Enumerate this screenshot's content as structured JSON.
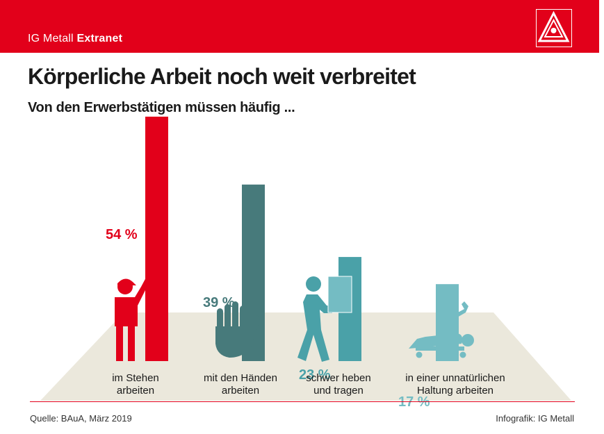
{
  "header": {
    "brand_prefix": "IG Metall",
    "brand_bold": "Extranet",
    "logo_icon": "ig-metall-logo-icon"
  },
  "title": "Körperliche Arbeit noch weit verbreitet",
  "subtitle": "Von den Erwerbstätigen müssen häufig ...",
  "chart_data": {
    "type": "bar",
    "categories": [
      "im Stehen\narbeiten",
      "mit den Händen\narbeiten",
      "schwer heben\nund tragen",
      "in einer unnatürlichen\nHaltung arbeiten"
    ],
    "values": [
      54,
      39,
      23,
      17
    ],
    "value_labels": [
      "54 %",
      "39 %",
      "23 %",
      "17 %"
    ],
    "unit": "%",
    "icons": [
      "standing-worker-icon",
      "hand-icon",
      "carrying-box-icon",
      "lying-worker-wrench-icon"
    ],
    "colors": [
      "#e2001a",
      "#477a7b",
      "#4aa1a8",
      "#74bcc3"
    ],
    "floor_color": "#ebe8dc",
    "ylim": [
      0,
      54
    ]
  },
  "footer": {
    "source": "Quelle: BAuA, März 2019",
    "credit": "Infografik: IG Metall"
  }
}
